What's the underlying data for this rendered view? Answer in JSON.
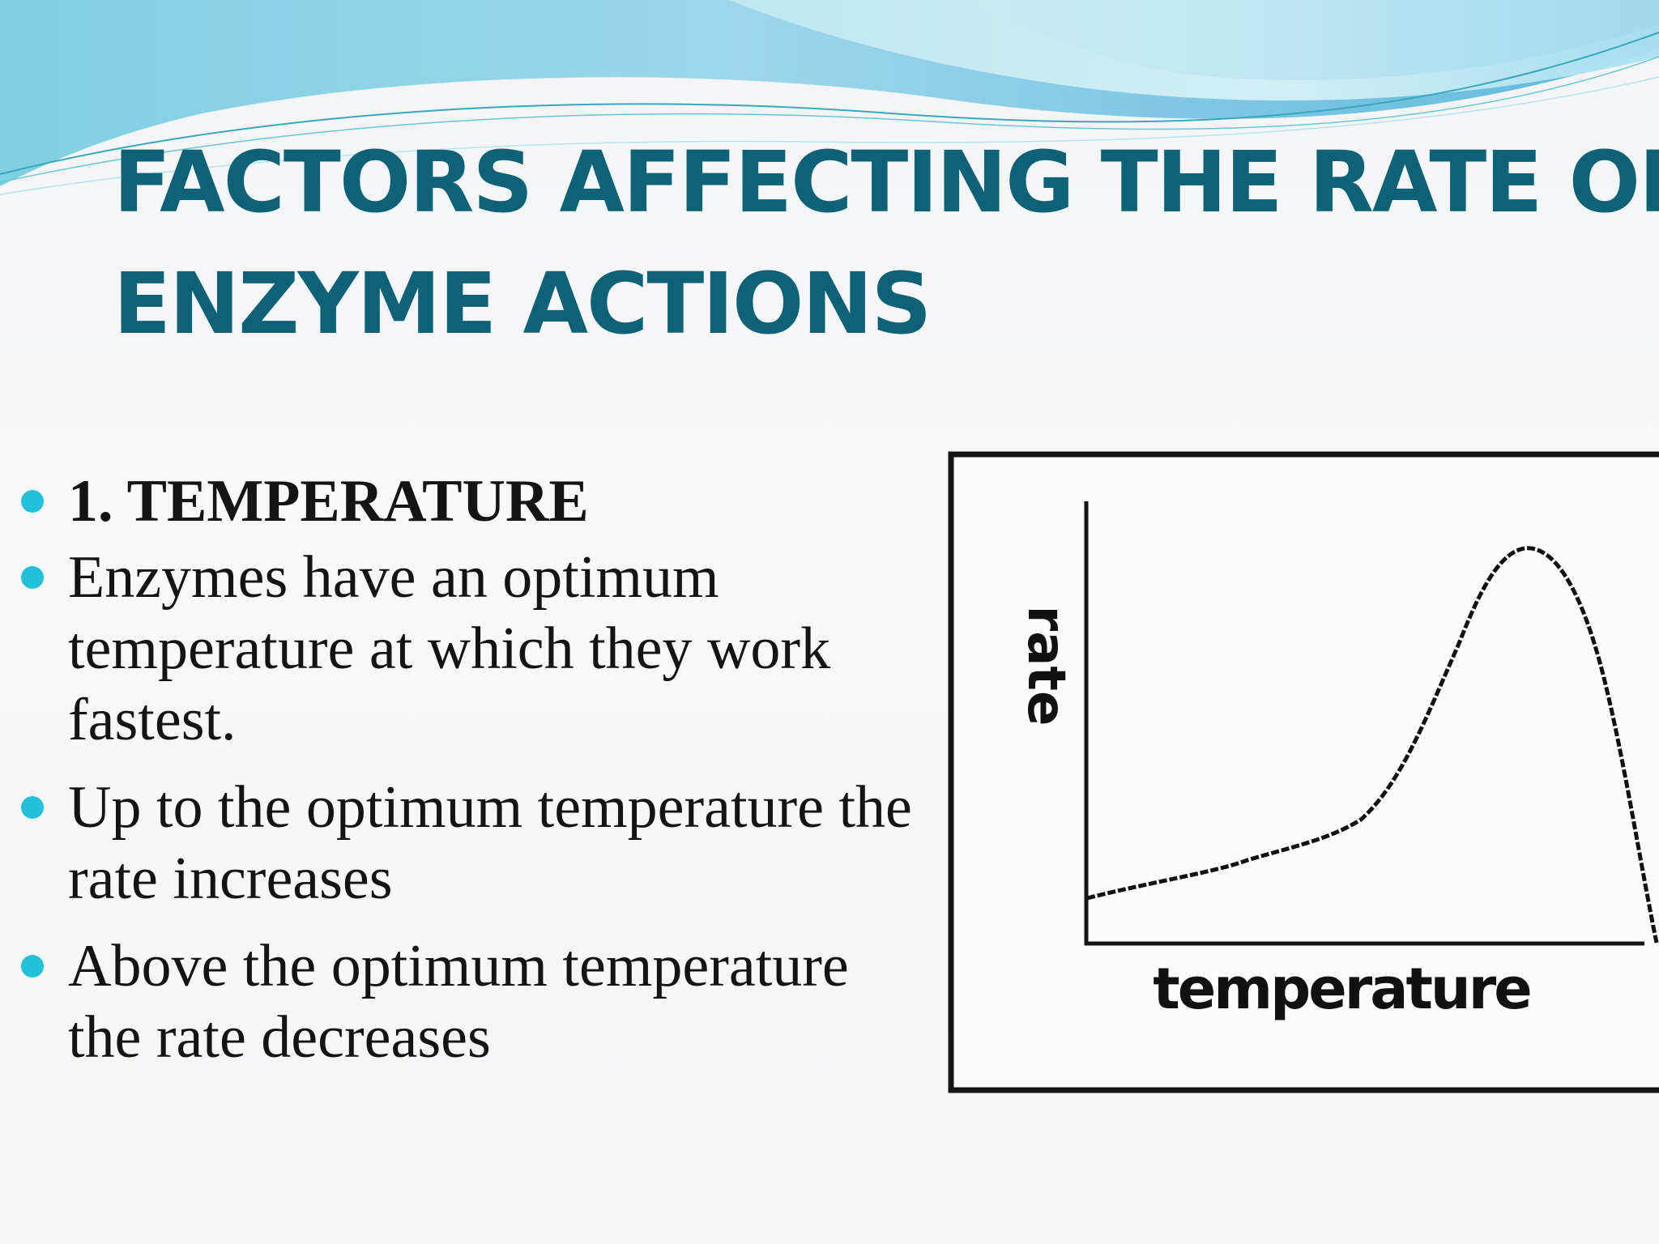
{
  "slide": {
    "title_line1": "FACTORS AFFECTING THE RATE OF",
    "title_line2": "ENZYME ACTIONS",
    "bullets": [
      "1. TEMPERATURE",
      "Enzymes have an optimum temperature at which they work fastest.",
      "Up to the optimum temperature the rate increases",
      "Above the optimum temperature the rate decreases"
    ],
    "accent_color": "#23c0da",
    "title_color": "#0e6278"
  },
  "graph": {
    "xlabel": "temperature",
    "ylabel": "rate",
    "line_color": "#111111",
    "curve_shape": "rises slowly, then steeply to a peak, then falls sharply to zero"
  }
}
